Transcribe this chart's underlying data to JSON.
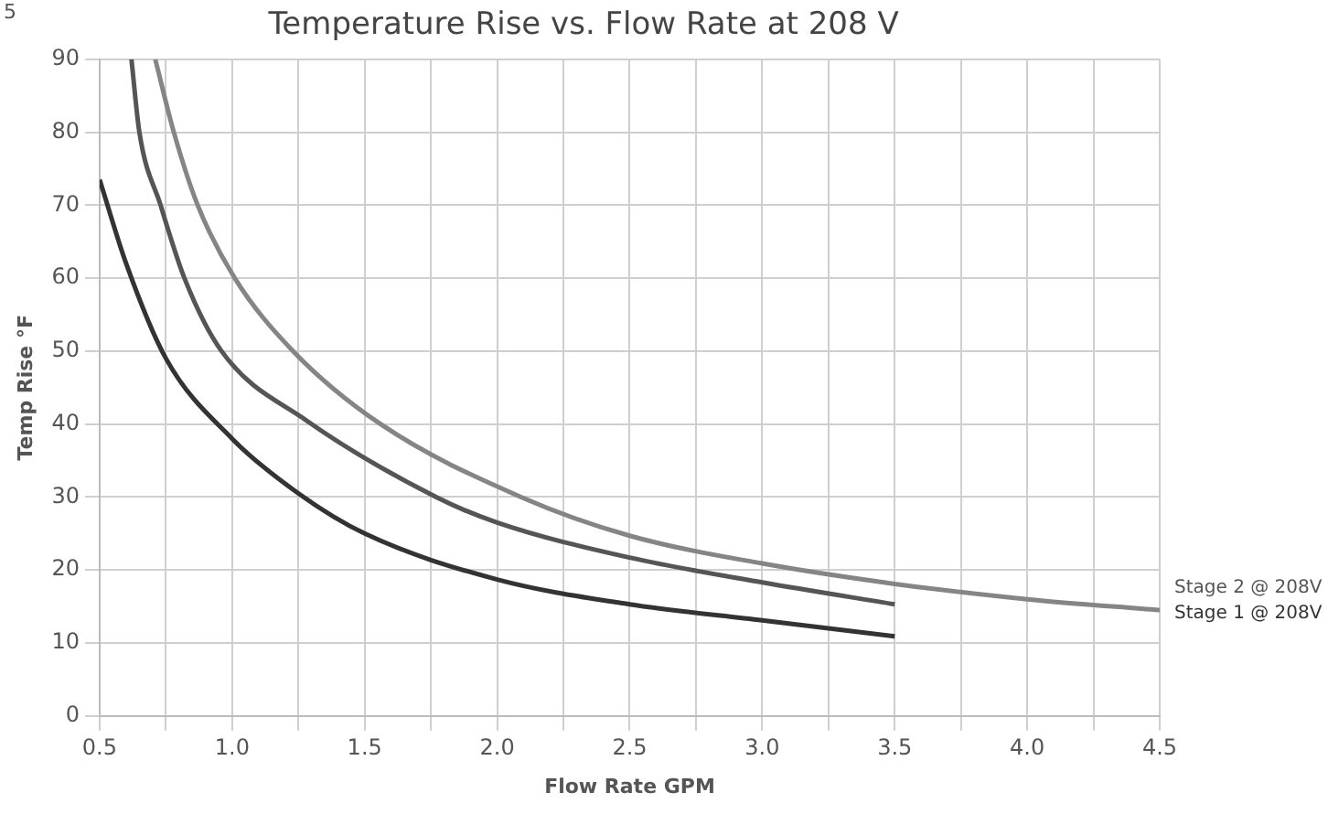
{
  "chart_data": {
    "type": "line",
    "title": "Temperature Rise vs. Flow Rate at 208 V",
    "xlabel": "Flow Rate GPM",
    "ylabel": "Temp Rise °F",
    "annotations": [
      "5"
    ],
    "xlim": [
      0.5,
      4.5
    ],
    "xticks": [
      0.5,
      {
        "value": 0.75,
        "label": null
      },
      {
        "value": 1,
        "label": "1.0"
      },
      {
        "value": 1.25,
        "label": null
      },
      1.5,
      {
        "value": 1.75,
        "label": null
      },
      {
        "value": 2,
        "label": "2.0"
      },
      {
        "value": 2.25,
        "label": null
      },
      2.5,
      {
        "value": 2.75,
        "label": null
      },
      {
        "value": 3,
        "label": "3.0"
      },
      {
        "value": 3.25,
        "label": null
      },
      3.5,
      {
        "value": 3.75,
        "label": null
      },
      {
        "value": 4,
        "label": "4.0"
      },
      {
        "value": 4.25,
        "label": null
      },
      4.5
    ],
    "ylim": [
      0,
      90
    ],
    "yticks": [
      0,
      10,
      20,
      30,
      40,
      50,
      60,
      70,
      80,
      90
    ],
    "grid": true,
    "legend": false,
    "marker": "none",
    "line_style": "solid",
    "series": [
      {
        "color": "#858585",
        "x": [
          0.71,
          0.78,
          0.87,
          1.01,
          1.23,
          1.56,
          2.09,
          2.5,
          3.0,
          3.5,
          4.0,
          4.5
        ],
        "values": [
          90,
          80,
          70,
          60,
          50,
          40,
          30,
          24.7,
          20.9,
          18.1,
          16,
          14.5
        ]
      },
      {
        "name": "Stage 2 @ 208V",
        "color": "#555555",
        "x": [
          0.62,
          0.65,
          0.73,
          0.82,
          0.96,
          1.28,
          1.77,
          2.0,
          2.5,
          3.0,
          3.5
        ],
        "values": [
          90,
          80,
          70,
          60,
          50,
          40.5,
          30,
          26.5,
          21.7,
          18.3,
          15.3
        ]
      },
      {
        "name": "Stage 1 @ 208V",
        "color": "#333333",
        "x": [
          0.5,
          0.6,
          0.75,
          1.0,
          1.25,
          1.5,
          2.0,
          2.5,
          3.0,
          3.5
        ],
        "values": [
          73.5,
          62,
          49,
          38,
          30.5,
          25,
          18.7,
          15.3,
          13.1,
          10.9
        ]
      }
    ]
  }
}
